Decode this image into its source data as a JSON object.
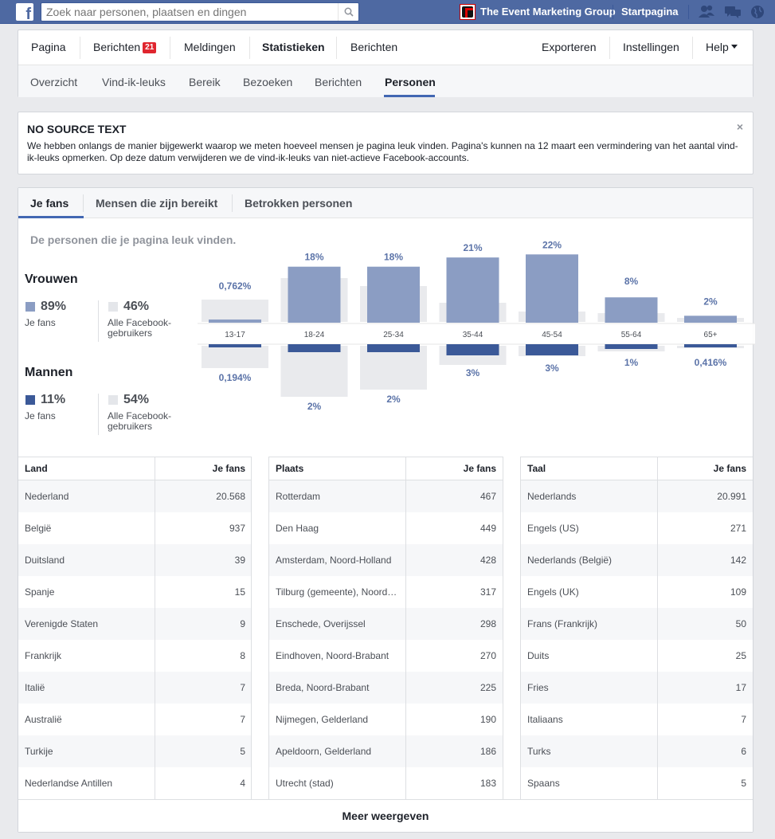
{
  "topbar": {
    "logo": "f",
    "search_placeholder": "Zoek naar personen, plaatsen en dingen",
    "org_name": "The Event Marketing Group",
    "startpagina": "Startpagina"
  },
  "page_nav": {
    "tabs": [
      {
        "label": "Pagina"
      },
      {
        "label": "Berichten",
        "badge": "21"
      },
      {
        "label": "Meldingen"
      },
      {
        "label": "Statistieken"
      },
      {
        "label": "Berichten"
      }
    ],
    "right": [
      {
        "label": "Exporteren"
      },
      {
        "label": "Instellingen"
      },
      {
        "label": "Help"
      }
    ],
    "subtabs": [
      {
        "label": "Overzicht"
      },
      {
        "label": "Vind-ik-leuks"
      },
      {
        "label": "Bereik"
      },
      {
        "label": "Bezoeken"
      },
      {
        "label": "Berichten"
      },
      {
        "label": "Personen"
      }
    ]
  },
  "notice": {
    "title": "NO SOURCE TEXT",
    "close": "×",
    "text": "We hebben onlangs de manier bijgewerkt waarop we meten hoeveel mensen je pagina leuk vinden. Pagina's kunnen na 12 maart een vermindering van het aantal vind-ik-leuks opmerken. Op deze datum verwijderen we de vind-ik-leuks van niet-actieve Facebook-accounts."
  },
  "main": {
    "tabs": [
      {
        "label": "Je fans"
      },
      {
        "label": "Mensen die zijn bereikt"
      },
      {
        "label": "Betrokken personen"
      }
    ],
    "subtitle": "De personen die je pagina leuk vinden.",
    "legend": {
      "women": {
        "title": "Vrouwen",
        "fans_pct": "89%",
        "fans_label": "Je fans",
        "all_pct": "46%",
        "all_label1": "Alle Facebook-",
        "all_label2": "gebruikers"
      },
      "men": {
        "title": "Mannen",
        "fans_pct": "11%",
        "fans_label": "Je fans",
        "all_pct": "54%",
        "all_label1": "Alle Facebook-",
        "all_label2": "gebruikers"
      }
    },
    "more": "Meer weergeven"
  },
  "colors": {
    "women_fans": "#8b9dc3",
    "men_fans": "#3b5998",
    "all_users": "#e9eaed",
    "label_blue": "#5b73a8"
  },
  "chart_data": {
    "type": "bar",
    "categories": [
      "13-17",
      "18-24",
      "25-34",
      "35-44",
      "45-54",
      "55-64",
      "65+"
    ],
    "series": [
      {
        "name": "Vrouwen",
        "labels": [
          "0,762%",
          "18%",
          "18%",
          "21%",
          "22%",
          "8%",
          "2%"
        ],
        "values": [
          0.762,
          18,
          18,
          21,
          22,
          8,
          2
        ]
      },
      {
        "name": "Mannen",
        "labels": [
          "0,194%",
          "2%",
          "2%",
          "3%",
          "3%",
          "1%",
          "0,416%"
        ],
        "values": [
          0.194,
          2,
          2,
          3,
          3,
          1,
          0.416
        ]
      }
    ]
  },
  "tables": [
    {
      "col1": "Land",
      "col2": "Je fans",
      "rows": [
        [
          "Nederland",
          "20.568"
        ],
        [
          "België",
          "937"
        ],
        [
          "Duitsland",
          "39"
        ],
        [
          "Spanje",
          "15"
        ],
        [
          "Verenigde Staten",
          "9"
        ],
        [
          "Frankrijk",
          "8"
        ],
        [
          "Italië",
          "7"
        ],
        [
          "Australië",
          "7"
        ],
        [
          "Turkije",
          "5"
        ],
        [
          "Nederlandse Antillen",
          "4"
        ]
      ]
    },
    {
      "col1": "Plaats",
      "col2": "Je fans",
      "rows": [
        [
          "Rotterdam",
          "467"
        ],
        [
          "Den Haag",
          "449"
        ],
        [
          "Amsterdam, Noord-Holland",
          "428"
        ],
        [
          "Tilburg (gemeente), Noord…",
          "317"
        ],
        [
          "Enschede, Overijssel",
          "298"
        ],
        [
          "Eindhoven, Noord-Brabant",
          "270"
        ],
        [
          "Breda, Noord-Brabant",
          "225"
        ],
        [
          "Nijmegen, Gelderland",
          "190"
        ],
        [
          "Apeldoorn, Gelderland",
          "186"
        ],
        [
          "Utrecht (stad)",
          "183"
        ]
      ]
    },
    {
      "col1": "Taal",
      "col2": "Je fans",
      "rows": [
        [
          "Nederlands",
          "20.991"
        ],
        [
          "Engels (US)",
          "271"
        ],
        [
          "Nederlands (België)",
          "142"
        ],
        [
          "Engels (UK)",
          "109"
        ],
        [
          "Frans (Frankrijk)",
          "50"
        ],
        [
          "Duits",
          "25"
        ],
        [
          "Fries",
          "17"
        ],
        [
          "Italiaans",
          "7"
        ],
        [
          "Turks",
          "6"
        ],
        [
          "Spaans",
          "5"
        ]
      ]
    }
  ]
}
